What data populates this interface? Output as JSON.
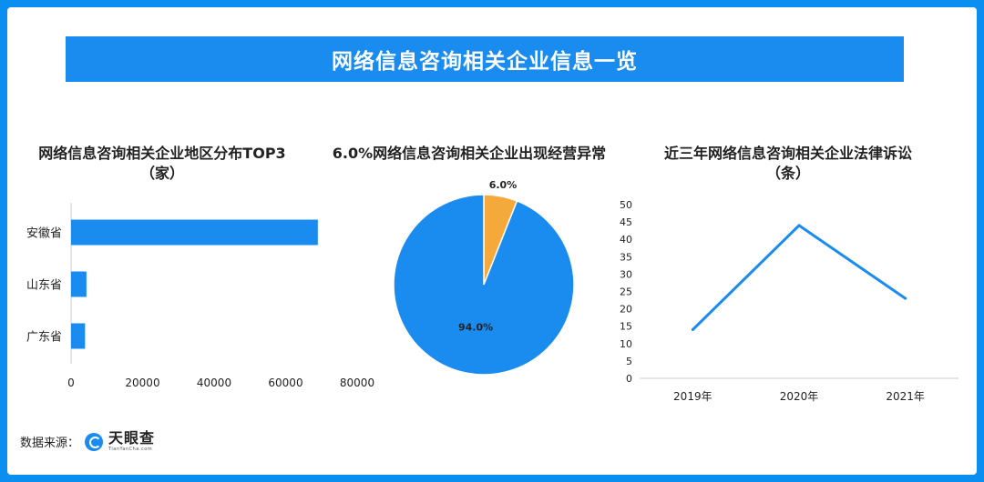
{
  "banner": {
    "title": "网络信息咨询相关企业信息一览"
  },
  "source": {
    "label": "数据来源：",
    "logo_cn": "天眼查",
    "logo_en": "TianYanCha.com"
  },
  "colors": {
    "accent": "#1a8cf0",
    "highlight": "#f5a93a",
    "background": "#0a8ff0"
  },
  "chart_data": [
    {
      "type": "bar",
      "orientation": "horizontal",
      "title": "网络信息咨询相关企业地区分布TOP3",
      "subtitle": "（家）",
      "categories": [
        "安徽省",
        "山东省",
        "广东省"
      ],
      "values": [
        69000,
        4300,
        3900
      ],
      "xlim": [
        0,
        80000
      ],
      "xticks": [
        "0",
        "20000",
        "40000",
        "60000",
        "80000"
      ],
      "grid": false
    },
    {
      "type": "pie",
      "title": "6.0%网络信息咨询相关企业出现经营异常",
      "slices": [
        {
          "value": 6.0,
          "label": "6.0%",
          "color": "#f5a93a"
        },
        {
          "value": 94.0,
          "label": "94.0%",
          "color": "#1a8cf0"
        }
      ]
    },
    {
      "type": "line",
      "title": "近三年网络信息咨询相关企业法律诉讼",
      "subtitle": "（条）",
      "categories": [
        "2019年",
        "2020年",
        "2021年"
      ],
      "values": [
        14,
        44,
        23
      ],
      "ylim": [
        0,
        50
      ],
      "yticks": [
        "0",
        "5",
        "10",
        "15",
        "20",
        "25",
        "30",
        "35",
        "40",
        "45",
        "50"
      ],
      "grid": false
    }
  ]
}
